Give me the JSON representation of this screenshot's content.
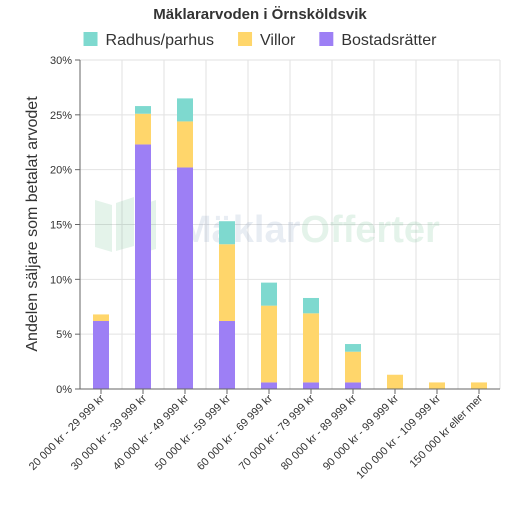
{
  "chart_data": {
    "type": "bar",
    "stacked": true,
    "title": "Mäklararvoden i Örnsköldsvik",
    "ylabel": "Andelen säljare som betalat arvodet",
    "xlabel": "",
    "ylim": [
      0,
      30
    ],
    "y_ticks": [
      "0%",
      "5%",
      "10%",
      "15%",
      "20%",
      "25%",
      "30%"
    ],
    "y_tick_values": [
      0,
      5,
      10,
      15,
      20,
      25,
      30
    ],
    "grid": true,
    "legend_position": "top",
    "categories": [
      "20 000 kr - 29 999 kr",
      "30 000 kr - 39 999 kr",
      "40 000 kr - 49 999 kr",
      "50 000 kr - 59 999 kr",
      "60 000 kr - 69 999 kr",
      "70 000 kr - 79 999 kr",
      "80 000 kr - 89 999 kr",
      "90 000 kr - 99 999 kr",
      "100 000 kr - 109 999 kr",
      "150 000 kr eller mer"
    ],
    "series": [
      {
        "name": "Bostadsrätter",
        "color": "#9d7ff5",
        "values": [
          6.2,
          22.3,
          20.2,
          6.2,
          0.6,
          0.6,
          0.6,
          0,
          0,
          0
        ]
      },
      {
        "name": "Villor",
        "color": "#ffd66b",
        "values": [
          0.6,
          2.8,
          4.2,
          7.0,
          7.0,
          6.3,
          2.8,
          1.3,
          0.6,
          0.6
        ]
      },
      {
        "name": "Radhus/parhus",
        "color": "#7ed9cf",
        "values": [
          0,
          0.7,
          2.1,
          2.1,
          2.1,
          1.4,
          0.7,
          0,
          0,
          0
        ]
      }
    ],
    "legend_order": [
      "Radhus/parhus",
      "Villor",
      "Bostadsrätter"
    ]
  },
  "watermark": {
    "brand_left": "Mäklar",
    "brand_right": "Offerter"
  }
}
